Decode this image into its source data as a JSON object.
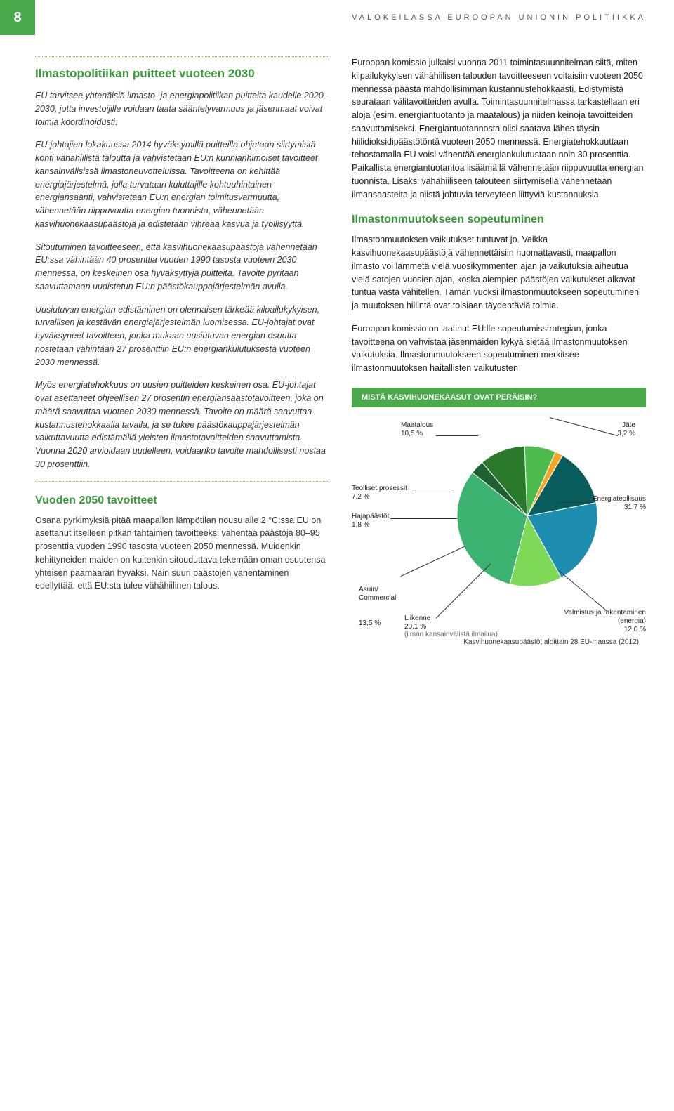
{
  "page_number": "8",
  "header": "VALOKEILASSA EUROOPAN UNIONIN POLITIIKKA",
  "left": {
    "title": "Ilmastopolitiikan puitteet vuoteen 2030",
    "p1": "EU tarvitsee yhtenäisiä ilmasto- ja energiapolitiikan puitteita kaudelle 2020–2030, jotta investoijille voidaan taata sääntelyvarmuus ja jäsenmaat voivat toimia koordinoidusti.",
    "p2": "EU-johtajien lokakuussa 2014 hyväksymillä puitteilla ohjataan siirtymistä kohti vähähiilistä taloutta ja vahvistetaan EU:n kunnianhimoiset tavoitteet kansainvälisissä ilmastoneuvotteluissa. Tavoitteena on kehittää energiajärjestelmä, jolla turvataan kuluttajille kohtuuhintainen energiansaanti, vahvistetaan EU:n energian toimitusvarmuutta, vähennetään riippuvuutta energian tuonnista, vähennetään kasvihuonekaasupäästöjä ja edistetään vihreää kasvua ja työllisyyttä.",
    "p3": "Sitoutuminen tavoitteeseen, että kasvihuonekaasupäästöjä vähennetään EU:ssa vähintään 40 prosenttia vuoden 1990 tasosta vuoteen 2030 mennessä, on keskeinen osa hyväksyttyjä puitteita. Tavoite pyritään saavuttamaan uudistetun EU:n päästökauppajärjestelmän avulla.",
    "p4": "Uusiutuvan energian edistäminen on olennaisen tärkeää kilpailukykyisen, turvallisen ja kestävän energiajärjestelmän luomisessa. EU-johtajat ovat hyväksyneet tavoitteen, jonka mukaan uusiutuvan energian osuutta nostetaan vähintään 27 prosenttiin EU:n energiankulutuksesta vuoteen 2030 mennessä.",
    "p5": "Myös energiatehokkuus on uusien puitteiden keskeinen osa. EU-johtajat ovat asettaneet ohjeellisen 27 prosentin energiansäästötavoitteen, joka on määrä saavuttaa vuoteen 2030 mennessä. Tavoite on määrä saavuttaa kustannustehokkaalla tavalla, ja se tukee päästökauppajärjestelmän vaikuttavuutta edistämällä yleisten ilmastotavoitteiden saavuttamista. Vuonna 2020 arvioidaan uudelleen, voidaanko tavoite mahdollisesti nostaa 30 prosenttiin."
  },
  "right": {
    "p1": "Euroopan komissio julkaisi vuonna 2011 toimintasuunnitelman siitä, miten kilpailukykyisen vähähiilisen talouden tavoitteeseen voitaisiin vuoteen 2050 mennessä päästä mahdollisimman kustannustehokkaasti. Edistymistä seurataan välitavoitteiden avulla. Toimintasuunnitelmassa tarkastellaan eri aloja (esim. energiantuotanto ja maatalous) ja niiden keinoja tavoitteiden saavuttamiseksi. Energiantuotannosta olisi saatava lähes täysin hiilidioksidipäästötöntä vuoteen 2050 mennessä. Energiatehokkuuttaan tehostamalla EU voisi vähentää energiankulutustaan noin 30 prosenttia. Paikallista energiantuotantoa lisäämällä vähennetään riippuvuutta energian tuonnista. Lisäksi vähähiiliseen talouteen siirtymisellä vähennetään ilmansaasteita ja niistä johtuvia terveyteen liittyviä kustannuksia.",
    "h2": "Ilmastonmuutokseen sopeutuminen",
    "p2": "Ilmastonmuutoksen vaikutukset tuntuvat jo. Vaikka kasvihuonekaasupäästöjä vähennettäisiin huomattavasti, maapallon ilmasto voi lämmetä vielä vuosikymmenten ajan ja vaikutuksia aiheutua vielä satojen vuosien ajan, koska aiempien päästöjen vaikutukset alkavat tuntua vasta vähitellen. Tämän vuoksi ilmastonmuutokseen sopeutuminen ja muutoksen hillintä ovat toisiaan täydentäviä toimia.",
    "p3": "Euroopan komissio on laatinut EU:lle sopeutumisstrategian, jonka tavoitteena on vahvistaa jäsenmaiden kykyä sietää ilmastonmuutoksen vaikutuksia. Ilmastonmuutokseen sopeutuminen merkitsee ilmastonmuutoksen haitallisten vaikutusten"
  },
  "chart": {
    "title": "MISTÄ KASVIHUONEKAASUT OVAT PERÄISIN?",
    "footer": "Kasvihuonekaasupäästöt aloittain 28 EU-maassa (2012)",
    "ilman": "(ilman kansainvälistä ilmailua)",
    "slices": [
      {
        "label": "Maatalous",
        "pct": "10,5 %",
        "value": 10.5,
        "color": "#2b7a2b"
      },
      {
        "label": "Teolliset prosessit",
        "pct": "7,2 %",
        "value": 7.2,
        "color": "#4dbb4d"
      },
      {
        "label": "Hajapäästöt",
        "pct": "1,8 %",
        "value": 1.8,
        "color": "#f5a623"
      },
      {
        "label": "Asuin/\nCommercial",
        "pct": "13,5 %",
        "value": 13.5,
        "color": "#0a5d5d"
      },
      {
        "label": "Liikenne",
        "pct": "20,1 %",
        "value": 20.1,
        "color": "#1d8db0"
      },
      {
        "label": "Valmistus ja rakentaminen (energia)",
        "pct": "12,0 %",
        "value": 12.0,
        "color": "#7ed957"
      },
      {
        "label": "Energiateollisuus",
        "pct": "31,7 %",
        "value": 31.7,
        "color": "#3cb371"
      },
      {
        "label": "Jäte",
        "pct": "3,2 %",
        "value": 3.2,
        "color": "#206030"
      }
    ]
  },
  "bottom": {
    "title": "Vuoden 2050 tavoitteet",
    "p1": "Osana pyrkimyksiä pitää maapallon lämpötilan nousu alle 2 °C:ssa EU on asettanut itselleen pitkän tähtäimen tavoitteeksi vähentää päästöjä 80–95 prosenttia vuoden 1990 tasosta vuoteen 2050 mennessä. Muidenkin kehittyneiden maiden on kuitenkin sitouduttava tekemään oman osuutensa yhteisen päämäärän hyväksi. Näin suuri päästöjen vähentäminen edellyttää, että EU:sta tulee vähähiilinen talous."
  }
}
